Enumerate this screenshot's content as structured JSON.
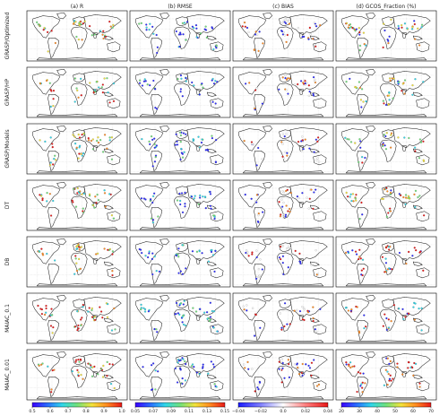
{
  "chart_data": {
    "type": "map-grid",
    "columns": [
      "(a) R",
      "(b) RMSE",
      "(c) BIAS",
      "(d) GCOS_Fraction (%)"
    ],
    "rows": [
      "GRASP/Optimized",
      "GRASP/HP",
      "GRASP/Models",
      "DT",
      "DB",
      "MAIAC_0.1",
      "MAIAC_0.01"
    ],
    "colorbars": [
      {
        "column": "(a) R",
        "ticks": [
          "0.5",
          "0.6",
          "0.7",
          "0.8",
          "0.9",
          "1.0"
        ],
        "range": [
          0.5,
          1.0
        ],
        "colormap": "rainbow"
      },
      {
        "column": "(b) RMSE",
        "ticks": [
          "0.05",
          "0.07",
          "0.09",
          "0.11",
          "0.13",
          "0.15"
        ],
        "range": [
          0.05,
          0.15
        ],
        "colormap": "rainbow"
      },
      {
        "column": "(c) BIAS",
        "ticks": [
          "−0.04",
          "−0.02",
          "0.0",
          "0.02",
          "0.04"
        ],
        "range": [
          -0.04,
          0.04
        ],
        "colormap": "bwr"
      },
      {
        "column": "(d) GCOS_Fraction (%)",
        "ticks": [
          "20",
          "30",
          "40",
          "50",
          "60",
          "70"
        ],
        "range": [
          20,
          70
        ],
        "colormap": "rainbow"
      }
    ],
    "colors": {
      "blue": "#2a2aff",
      "cyan": "#2fd6e8",
      "green": "#6fe07a",
      "yellow": "#f2e23a",
      "orange": "#ff8a20",
      "red": "#e81818",
      "white": "#ffffff",
      "map_line": "#111111",
      "grid": "#999999"
    }
  }
}
